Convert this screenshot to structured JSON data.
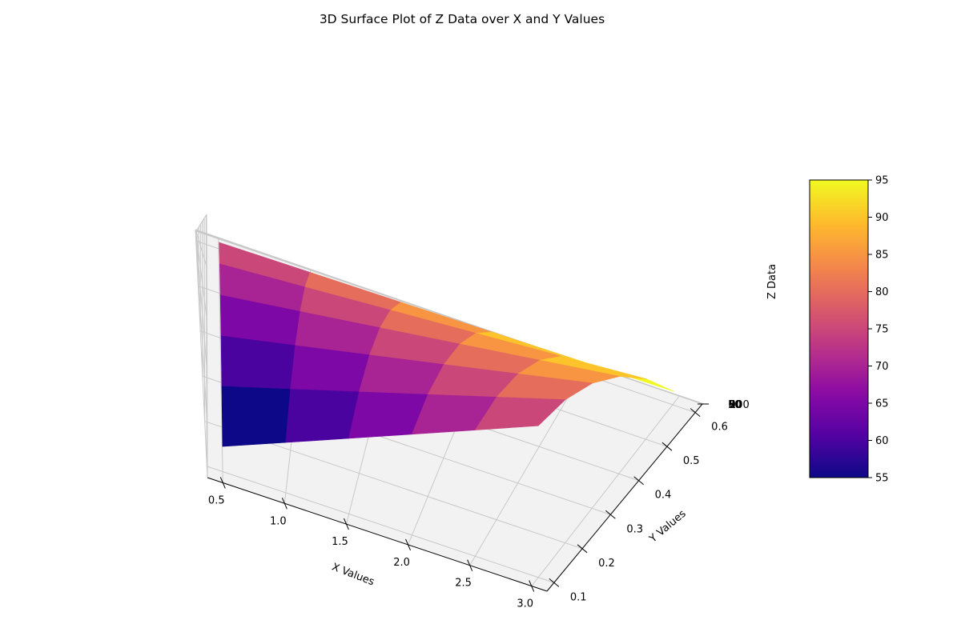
{
  "chart_data": {
    "type": "surface",
    "title": "3D Surface Plot of Z Data over X and Y Values",
    "xlabel": "X Values",
    "ylabel": "Y Values",
    "zlabel": "Z Data",
    "x": [
      0.5,
      1.0,
      1.5,
      2.0,
      2.5,
      3.0
    ],
    "y": [
      0.1,
      0.2,
      0.3,
      0.4,
      0.5,
      0.6
    ],
    "z": [
      [
        55,
        60,
        65,
        70,
        75,
        80
      ],
      [
        60,
        65,
        70,
        75,
        80,
        85
      ],
      [
        65,
        70,
        75,
        80,
        85,
        90
      ],
      [
        70,
        75,
        80,
        85,
        90,
        95
      ],
      [
        75,
        80,
        85,
        90,
        95,
        100
      ],
      [
        80,
        85,
        90,
        95,
        100,
        105
      ]
    ],
    "face_values": [
      [
        55,
        60,
        65,
        70,
        75
      ],
      [
        60,
        65,
        70,
        75,
        80
      ],
      [
        65,
        70,
        75,
        80,
        85
      ],
      [
        70,
        75,
        80,
        85,
        90
      ],
      [
        75,
        80,
        85,
        90,
        95
      ]
    ],
    "xticks": [
      "0.5",
      "1.0",
      "1.5",
      "2.0",
      "2.5",
      "3.0"
    ],
    "yticks": [
      "0.1",
      "0.2",
      "0.3",
      "0.4",
      "0.5",
      "0.6"
    ],
    "zticks": [
      "50",
      "60",
      "70",
      "80",
      "90",
      "100"
    ],
    "zlim": [
      50,
      100
    ],
    "colormap": "plasma",
    "colorbar": {
      "range": [
        55,
        95
      ],
      "ticks": [
        "55",
        "60",
        "65",
        "70",
        "75",
        "80",
        "85",
        "90",
        "95"
      ]
    },
    "grid": true
  }
}
